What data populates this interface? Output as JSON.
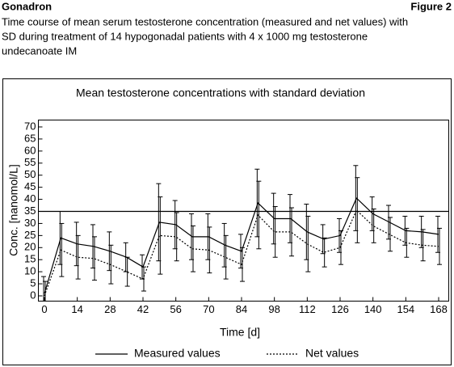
{
  "header": {
    "title": "Gonadron",
    "figure": "Figure 2",
    "caption": [
      "Time course of mean serum testosterone concentration (measured and net values) with",
      "SD during treatment of 14 hypogonadal patients with 4 x 1000 mg testosterone",
      "undecanoate IM"
    ]
  },
  "chart_data": {
    "type": "line",
    "title": "Mean testosterone concentrations with standard deviation",
    "x_label": "Time [d]",
    "y_label": "Conc. [nanomol/L]",
    "x": [
      0,
      7,
      14,
      21,
      28,
      35,
      42,
      49,
      56,
      63,
      70,
      77,
      84,
      91,
      98,
      105,
      112,
      119,
      126,
      133,
      140,
      147,
      154,
      161,
      168
    ],
    "series": [
      {
        "name": "Measured values",
        "color": "#000000",
        "style": "solid",
        "values": [
          1,
          24,
          21.5,
          20.5,
          18.5,
          16,
          12,
          30.5,
          29.5,
          24.5,
          24.5,
          21,
          18.5,
          38.5,
          32,
          32,
          26.5,
          23.5,
          25,
          40.5,
          34,
          30.5,
          27,
          26.5,
          25.5
        ],
        "errors": [
          7,
          11,
          9,
          9,
          8,
          6,
          5,
          16,
          10,
          9.5,
          9.5,
          9,
          7,
          14,
          10.5,
          10,
          11.5,
          6,
          7,
          13.5,
          7,
          7,
          6,
          6.5,
          7.5
        ]
      },
      {
        "name": "Net values",
        "color": "#000000",
        "style": "dotted",
        "values": [
          0,
          19,
          16,
          15.5,
          13,
          10,
          7,
          25,
          24.5,
          19.5,
          19,
          16,
          13,
          33.5,
          26.5,
          26.5,
          21.5,
          18,
          20,
          35.5,
          29,
          25.5,
          22,
          21,
          20.5
        ],
        "errors": [
          6,
          11,
          9,
          9,
          8,
          6,
          5,
          16,
          10,
          9.5,
          9.5,
          9,
          7,
          14,
          10.5,
          10,
          11.5,
          6,
          7,
          13.5,
          7,
          7,
          6,
          6.5,
          7.5
        ]
      }
    ],
    "reference_line": 35,
    "xlim": [
      0,
      168
    ],
    "xticks": [
      0,
      14,
      28,
      42,
      56,
      70,
      84,
      98,
      112,
      126,
      140,
      154,
      168
    ],
    "ylim": [
      0,
      70
    ],
    "yticks": [
      0,
      5,
      10,
      15,
      20,
      25,
      30,
      35,
      40,
      45,
      50,
      55,
      60,
      65,
      70
    ],
    "grid": false,
    "legend": "bottom"
  }
}
